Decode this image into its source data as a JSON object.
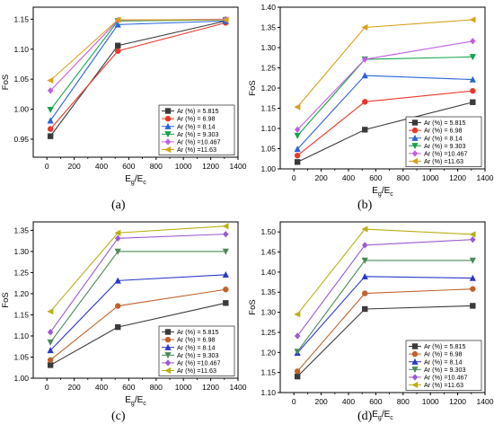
{
  "chart_data": [
    {
      "type": "line",
      "panel": "(a)",
      "x": [
        26,
        520,
        1310
      ],
      "ylabel": "FoS",
      "xlabel_main": "E",
      "xlabel_sub1": "g",
      "xlabel_sep": "/E",
      "xlabel_sub2": "c",
      "xlim": [
        -100,
        1400
      ],
      "xticks": [
        0,
        200,
        400,
        600,
        800,
        1000,
        1200,
        1400
      ],
      "xtick_labels": [
        "0",
        "200",
        "400",
        "600",
        "800",
        "1000",
        "1200",
        "1400"
      ],
      "ylim": [
        0.92,
        1.17
      ],
      "yticks": [
        0.95,
        1.0,
        1.05,
        1.1,
        1.15
      ],
      "ytick_labels": [
        "0.95",
        "1.00",
        "1.05",
        "1.10",
        "1.15"
      ],
      "legend_position": "bottom-right",
      "series": [
        {
          "name": "Ar (%) = 5.815",
          "values": [
            0.955,
            1.106,
            1.147
          ]
        },
        {
          "name": "Ar (%) = 6.98",
          "values": [
            0.967,
            1.097,
            1.144
          ]
        },
        {
          "name": "Ar (%) = 8.14",
          "values": [
            0.981,
            1.141,
            1.147
          ]
        },
        {
          "name": "Ar (%) = 9.303",
          "values": [
            0.999,
            1.147,
            1.149
          ]
        },
        {
          "name": "Ar (%) =10.467",
          "values": [
            1.031,
            1.148,
            1.15
          ]
        },
        {
          "name": "Ar (%) =11.63",
          "values": [
            1.048,
            1.149,
            1.149
          ]
        }
      ]
    },
    {
      "type": "line",
      "panel": "(b)",
      "x": [
        26,
        520,
        1310
      ],
      "ylabel": "FoS",
      "xlabel_main": "E",
      "xlabel_sub1": "g",
      "xlabel_sep": "/E",
      "xlabel_sub2": "c",
      "xlim": [
        -100,
        1400
      ],
      "xticks": [
        0,
        200,
        400,
        600,
        800,
        1000,
        1200,
        1400
      ],
      "xtick_labels": [
        "0",
        "200",
        "400",
        "600",
        "800",
        "1000",
        "1200",
        "1400"
      ],
      "ylim": [
        1.0,
        1.4
      ],
      "yticks": [
        1.0,
        1.05,
        1.1,
        1.15,
        1.2,
        1.25,
        1.3,
        1.35,
        1.4
      ],
      "ytick_labels": [
        "1.00",
        "1.05",
        "1.10",
        "1.15",
        "1.20",
        "1.25",
        "1.30",
        "1.35",
        "1.40"
      ],
      "legend_position": "bottom-right",
      "series": [
        {
          "name": "Ar (%) = 5.815",
          "values": [
            1.017,
            1.097,
            1.165
          ]
        },
        {
          "name": "Ar (%) = 6.98",
          "values": [
            1.033,
            1.166,
            1.193
          ]
        },
        {
          "name": "Ar (%) = 8.14",
          "values": [
            1.049,
            1.231,
            1.221
          ]
        },
        {
          "name": "Ar (%) = 9.303",
          "values": [
            1.082,
            1.271,
            1.277
          ]
        },
        {
          "name": "Ar (%) =10.467",
          "values": [
            1.097,
            1.271,
            1.316
          ]
        },
        {
          "name": "Ar (%) =11.63",
          "values": [
            1.153,
            1.35,
            1.369
          ]
        }
      ]
    },
    {
      "type": "line",
      "panel": "(c)",
      "x": [
        26,
        520,
        1310
      ],
      "ylabel": "FoS",
      "xlabel_main": "E",
      "xlabel_sub1": "g",
      "xlabel_sep": "/E",
      "xlabel_sub2": "c",
      "xlim": [
        -100,
        1400
      ],
      "xticks": [
        0,
        200,
        400,
        600,
        800,
        1000,
        1200,
        1400
      ],
      "xtick_labels": [
        "0",
        "200",
        "400",
        "600",
        "800",
        "1000",
        "1200",
        "1400"
      ],
      "ylim": [
        1.0,
        1.37
      ],
      "yticks": [
        1.0,
        1.05,
        1.1,
        1.15,
        1.2,
        1.25,
        1.3,
        1.35
      ],
      "ytick_labels": [
        "1.00",
        "1.05",
        "1.10",
        "1.15",
        "1.20",
        "1.25",
        "1.30",
        "1.35"
      ],
      "legend_position": "bottom-right",
      "series": [
        {
          "name": "Ar (%) = 5.815",
          "values": [
            1.031,
            1.121,
            1.178
          ]
        },
        {
          "name": "Ar (%) = 6.98",
          "values": [
            1.043,
            1.171,
            1.21
          ]
        },
        {
          "name": "Ar (%) = 8.14",
          "values": [
            1.066,
            1.231,
            1.245
          ]
        },
        {
          "name": "Ar (%) = 9.303",
          "values": [
            1.085,
            1.3,
            1.3
          ]
        },
        {
          "name": "Ar (%) =10.467",
          "values": [
            1.109,
            1.331,
            1.341
          ]
        },
        {
          "name": "Ar (%) =11.63",
          "values": [
            1.158,
            1.344,
            1.36
          ]
        }
      ]
    },
    {
      "type": "line",
      "panel": "(d)",
      "x": [
        26,
        520,
        1310
      ],
      "ylabel": "FoS",
      "xlabel_main": "E",
      "xlabel_sub1": "g",
      "xlabel_sep": "/E",
      "xlabel_sub2": "c",
      "xlim": [
        -100,
        1400
      ],
      "xticks": [
        0,
        200,
        400,
        600,
        800,
        1000,
        1200,
        1400
      ],
      "xtick_labels": [
        "0",
        "200",
        "400",
        "600",
        "800",
        "1000",
        "1200",
        "1400"
      ],
      "ylim": [
        1.1,
        1.525
      ],
      "yticks": [
        1.1,
        1.15,
        1.2,
        1.25,
        1.3,
        1.35,
        1.4,
        1.45,
        1.5
      ],
      "ytick_labels": [
        "1.10",
        "1.15",
        "1.20",
        "1.25",
        "1.30",
        "1.35",
        "1.40",
        "1.45",
        "1.50"
      ],
      "legend_position": "bottom-right",
      "series": [
        {
          "name": "Ar (%) = 5.815",
          "values": [
            1.14,
            1.308,
            1.316
          ]
        },
        {
          "name": "Ar (%) = 6.98",
          "values": [
            1.153,
            1.347,
            1.358
          ]
        },
        {
          "name": "Ar (%) = 8.14",
          "values": [
            1.199,
            1.389,
            1.385
          ]
        },
        {
          "name": "Ar (%) = 9.303",
          "values": [
            1.202,
            1.429,
            1.429
          ]
        },
        {
          "name": "Ar (%) =10.467",
          "values": [
            1.241,
            1.467,
            1.481
          ]
        },
        {
          "name": "Ar (%) =11.63",
          "values": [
            1.295,
            1.507,
            1.494
          ]
        }
      ]
    }
  ],
  "styles": {
    "ab": {
      "colors": [
        "#3a3a3a",
        "#e8382a",
        "#2a62d8",
        "#14a34a",
        "#c25ee0",
        "#d9a11a"
      ],
      "markers": [
        "square",
        "circle",
        "triangle-up",
        "triangle-down",
        "diamond",
        "triangle-left"
      ]
    },
    "cd": {
      "colors": [
        "#3a3a3a",
        "#c0622a",
        "#2a38c8",
        "#4a8a5a",
        "#9a5ad0",
        "#b8b016"
      ],
      "markers": [
        "square",
        "circle",
        "triangle-up",
        "triangle-down",
        "diamond",
        "triangle-left"
      ]
    }
  }
}
